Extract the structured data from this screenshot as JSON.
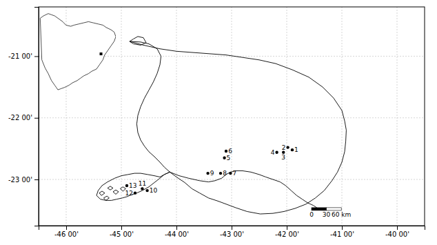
{
  "chart_data": {
    "type": "map",
    "xlim": [
      -46.5,
      -39.5
    ],
    "ylim": [
      -23.75,
      -20.2
    ],
    "xticks": [
      {
        "value": -46,
        "label": "-46 00'"
      },
      {
        "value": -45,
        "label": "-45 00'"
      },
      {
        "value": -44,
        "label": "-44 00'"
      },
      {
        "value": -43,
        "label": "-43 00'"
      },
      {
        "value": -42,
        "label": "-42 00'"
      },
      {
        "value": -41,
        "label": "-41 00'"
      },
      {
        "value": -40,
        "label": "-40 00'"
      }
    ],
    "yticks": [
      {
        "value": -21,
        "label": "-21 00'"
      },
      {
        "value": -22,
        "label": "-22 00'"
      },
      {
        "value": -23,
        "label": "-23 00'"
      }
    ],
    "grid": true,
    "series": [
      {
        "type": "line",
        "color": "#000000",
        "x": [
          -44.85,
          -44.6,
          -44.3,
          -44.0,
          -43.7,
          -43.4,
          -43.1,
          -42.8,
          -42.5,
          -42.2,
          -41.9,
          -41.6,
          -41.35,
          -41.15,
          -41.0,
          -40.95,
          -40.92,
          -40.93,
          -40.95,
          -41.0,
          -41.08,
          -41.18,
          -41.32,
          -41.48,
          -41.65,
          -41.85,
          -42.05,
          -42.25,
          -42.48,
          -42.72,
          -42.92,
          -43.1,
          -43.25,
          -43.42,
          -43.58,
          -43.72,
          -43.85,
          -44.0,
          -44.12,
          -44.22,
          -44.3,
          -44.4,
          -44.5,
          -44.58,
          -44.65,
          -44.7,
          -44.72,
          -44.7,
          -44.65,
          -44.58,
          -44.5,
          -44.42,
          -44.35,
          -44.3,
          -44.28,
          -44.35,
          -44.5,
          -44.65,
          -44.85
        ],
        "y": [
          -20.76,
          -20.82,
          -20.88,
          -20.92,
          -20.94,
          -20.96,
          -20.98,
          -21.02,
          -21.06,
          -21.12,
          -21.22,
          -21.34,
          -21.5,
          -21.68,
          -21.88,
          -22.05,
          -22.2,
          -22.38,
          -22.55,
          -22.72,
          -22.88,
          -23.02,
          -23.18,
          -23.3,
          -23.4,
          -23.47,
          -23.52,
          -23.55,
          -23.56,
          -23.52,
          -23.46,
          -23.4,
          -23.35,
          -23.3,
          -23.22,
          -23.15,
          -23.05,
          -22.96,
          -22.88,
          -22.8,
          -22.72,
          -22.63,
          -22.55,
          -22.46,
          -22.36,
          -22.24,
          -22.1,
          -21.96,
          -21.82,
          -21.68,
          -21.55,
          -21.42,
          -21.28,
          -21.14,
          -21.0,
          -20.88,
          -20.8,
          -20.77,
          -20.76
        ]
      },
      {
        "type": "line",
        "color": "#000000",
        "x": [
          -44.12,
          -43.95,
          -43.78,
          -43.58,
          -43.42,
          -43.3,
          -43.18,
          -43.1,
          -43.02,
          -42.92,
          -42.8,
          -42.65,
          -42.5,
          -42.38,
          -42.25,
          -42.12,
          -42.02,
          -41.92,
          -41.82,
          -41.72,
          -41.62,
          -41.52,
          -41.42,
          -41.32
        ],
        "y": [
          -22.88,
          -22.94,
          -22.98,
          -23.02,
          -23.04,
          -23.02,
          -22.98,
          -22.92,
          -22.88,
          -22.86,
          -22.86,
          -22.88,
          -22.92,
          -22.96,
          -23.0,
          -23.04,
          -23.1,
          -23.18,
          -23.26,
          -23.32,
          -23.38,
          -23.42,
          -23.48,
          -23.5
        ]
      },
      {
        "type": "line",
        "color": "#000000",
        "x": [
          -44.12,
          -44.22,
          -44.3,
          -44.4,
          -44.5,
          -44.62,
          -44.72,
          -44.82,
          -44.9,
          -44.98,
          -45.08,
          -45.18,
          -45.28,
          -45.38,
          -45.45,
          -45.42,
          -45.35,
          -45.25,
          -45.12,
          -45.0,
          -44.88,
          -44.76,
          -44.65,
          -44.52,
          -44.4,
          -44.3,
          -44.22,
          -44.12
        ],
        "y": [
          -22.88,
          -22.92,
          -22.98,
          -23.05,
          -23.12,
          -23.18,
          -23.22,
          -23.25,
          -23.28,
          -23.3,
          -23.32,
          -23.34,
          -23.34,
          -23.32,
          -23.26,
          -23.18,
          -23.1,
          -23.04,
          -22.98,
          -22.94,
          -22.92,
          -22.9,
          -22.9,
          -22.92,
          -22.94,
          -22.96,
          -22.92,
          -22.88
        ]
      },
      {
        "type": "line",
        "color": "#000000",
        "x": [
          -45.15,
          -45.2,
          -45.25,
          -45.2,
          -45.15
        ],
        "y": [
          -23.14,
          -23.17,
          -23.14,
          -23.11,
          -23.14
        ]
      },
      {
        "type": "line",
        "color": "#000000",
        "x": [
          -45.3,
          -45.36,
          -45.4,
          -45.35,
          -45.3
        ],
        "y": [
          -23.22,
          -23.26,
          -23.22,
          -23.19,
          -23.22
        ]
      },
      {
        "type": "line",
        "color": "#000000",
        "x": [
          -45.05,
          -45.1,
          -45.15,
          -45.1,
          -45.05
        ],
        "y": [
          -23.2,
          -23.24,
          -23.2,
          -23.17,
          -23.2
        ]
      },
      {
        "type": "line",
        "color": "#000000",
        "x": [
          -44.92,
          -44.97,
          -45.02,
          -44.97,
          -44.92
        ],
        "y": [
          -23.15,
          -23.19,
          -23.15,
          -23.12,
          -23.15
        ]
      },
      {
        "type": "line",
        "color": "#000000",
        "x": [
          -45.22,
          -45.28,
          -45.32,
          -45.26,
          -45.22
        ],
        "y": [
          -23.3,
          -23.34,
          -23.3,
          -23.27,
          -23.3
        ]
      },
      {
        "type": "line",
        "color": "#000000",
        "x": [
          -44.85,
          -44.78,
          -44.7,
          -44.6,
          -44.55,
          -44.65,
          -44.78,
          -44.85
        ],
        "y": [
          -20.76,
          -20.72,
          -20.68,
          -20.7,
          -20.78,
          -20.82,
          -20.8,
          -20.76
        ]
      },
      {
        "type": "scatter",
        "color": "#000000",
        "marker": "dot",
        "x": [
          -41.9,
          -41.98,
          -42.06,
          -42.18,
          -43.13,
          -43.1,
          -43.02,
          -43.2,
          -43.43,
          -44.53,
          -44.62,
          -44.75,
          -44.9
        ],
        "y": [
          -22.52,
          -22.48,
          -22.56,
          -22.56,
          -22.65,
          -22.54,
          -22.9,
          -22.9,
          -22.9,
          -23.18,
          -23.15,
          -23.22,
          -23.1
        ],
        "labels": [
          "1",
          "2",
          "3",
          "4",
          "5",
          "6",
          "7",
          "8",
          "9",
          "10",
          "11",
          "12",
          "13"
        ]
      }
    ],
    "scalebar": {
      "lon": -41.55,
      "lat": -23.48,
      "length": 0.54,
      "labels": [
        "0",
        "30",
        "60 km"
      ],
      "colors": [
        "#000000",
        "#ffffff"
      ]
    },
    "inset": {
      "xlim": [
        -82,
        -34
      ],
      "ylim": [
        -58,
        14
      ],
      "color": "#000000",
      "x": [
        -81,
        -79,
        -76,
        -74,
        -72,
        -70,
        -67,
        -65,
        -62,
        -60,
        -57,
        -54,
        -51,
        -48,
        -45,
        -42,
        -40,
        -37,
        -35,
        -34,
        -35,
        -37,
        -39,
        -41,
        -42,
        -44,
        -46,
        -49,
        -51,
        -54,
        -56,
        -58,
        -61,
        -63,
        -66,
        -68,
        -70,
        -71,
        -72,
        -74,
        -76,
        -78,
        -80,
        -81
      ],
      "y": [
        8,
        10,
        12,
        11,
        10,
        8,
        5,
        2,
        1,
        2,
        3,
        4,
        5,
        4,
        3,
        2,
        0,
        -2,
        -4,
        -8,
        -12,
        -16,
        -20,
        -24,
        -28,
        -32,
        -36,
        -38,
        -40,
        -42,
        -44,
        -46,
        -48,
        -50,
        -52,
        -53,
        -54,
        -52,
        -50,
        -46,
        -40,
        -35,
        -28,
        8
      ],
      "marker": {
        "x": -43.2,
        "y": -22.9,
        "color": "#000000"
      }
    }
  }
}
